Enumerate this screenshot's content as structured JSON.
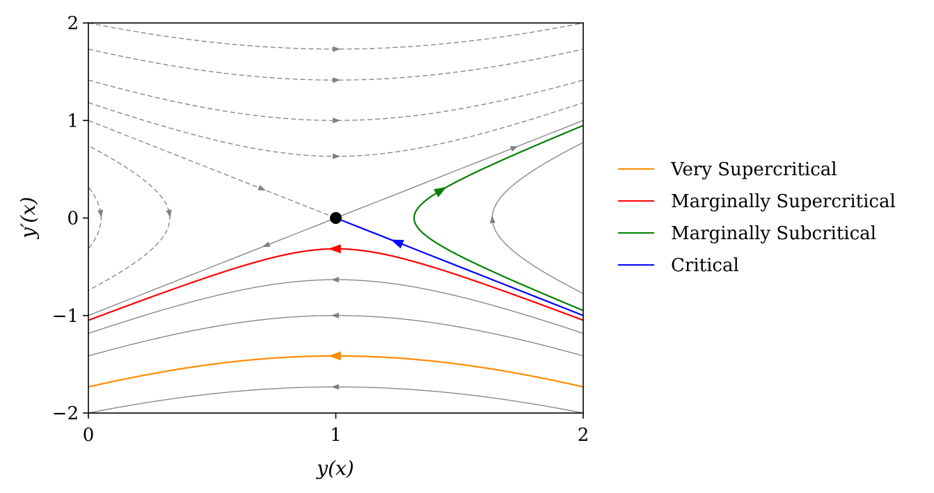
{
  "chart_data": {
    "type": "line",
    "title": "",
    "xlabel": "y(x)",
    "ylabel": "y′(x)",
    "xlim": [
      0,
      2
    ],
    "ylim": [
      -2,
      2
    ],
    "xticks": [
      0,
      1,
      2
    ],
    "yticks": [
      -2,
      -1,
      0,
      1,
      2
    ],
    "xtick_labels": [
      "0",
      "1",
      "2"
    ],
    "ytick_labels": [
      "−2",
      "−1",
      "0",
      "1",
      "2"
    ],
    "grid": false,
    "legend_position": "right",
    "critical_point": {
      "x": 1,
      "y": 0
    },
    "gray_color": "#808080",
    "field_curves": [
      {
        "type": "h",
        "c": -3,
        "dashed": false,
        "direction": "left"
      },
      {
        "type": "h",
        "c": -1,
        "dashed": false,
        "direction": "left"
      },
      {
        "type": "h",
        "c": -0.4,
        "dashed": false,
        "direction": "left"
      },
      {
        "type": "h",
        "c": 0.4,
        "dashed": true,
        "direction": "right"
      },
      {
        "type": "h",
        "c": 1,
        "dashed": true,
        "direction": "right"
      },
      {
        "type": "h",
        "c": 2,
        "dashed": true,
        "direction": "right"
      },
      {
        "type": "h",
        "c": 3,
        "dashed": true,
        "direction": "right"
      },
      {
        "type": "v",
        "c": -0.4,
        "dashed": false,
        "direction": "up",
        "arrow_y": -0.02
      },
      {
        "type": "v",
        "c": 0.45,
        "dashed": true,
        "direction": "down",
        "arrow_y": 0.05
      },
      {
        "type": "v",
        "c": 0.9,
        "dashed": true,
        "direction": "down",
        "arrow_y": 0.05
      },
      {
        "type": "sep",
        "branch": "upper-right",
        "direction": "out",
        "dashed": false,
        "arrow_x": 1.72
      },
      {
        "type": "sep",
        "branch": "lower-left",
        "direction": "out",
        "dashed": false,
        "arrow_x": 0.72
      },
      {
        "type": "sep",
        "branch": "upper-left",
        "direction": "in",
        "dashed": true,
        "arrow_x": 0.7
      }
    ],
    "series": [
      {
        "name": "Very Supercritical",
        "color": "#ff8c00",
        "family": "h",
        "c": -2,
        "direction": "left"
      },
      {
        "name": "Marginally Supercritical",
        "color": "#ff0000",
        "family": "h",
        "c": -0.1,
        "direction": "left"
      },
      {
        "name": "Marginally Subcritical",
        "color": "#008000",
        "family": "v",
        "c": -0.1,
        "direction": "up",
        "arrow_y": 0.28
      },
      {
        "name": "Critical",
        "color": "#0000ff",
        "family": "sep",
        "branch": "lower-right",
        "direction": "in",
        "arrow_x": 1.25
      }
    ]
  }
}
